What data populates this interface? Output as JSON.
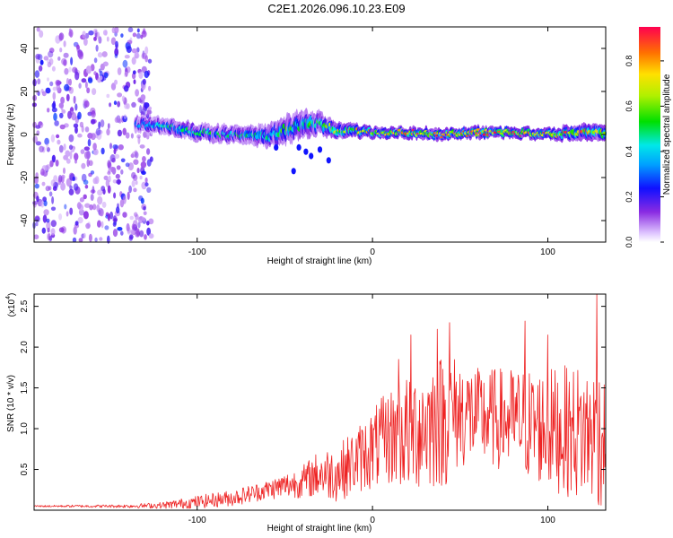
{
  "title": "C2E1.2026.096.10.23.E09",
  "chart_data": [
    {
      "type": "heatmap",
      "xlabel": "Height of straight line (km)",
      "ylabel": "Frequency (Hz)",
      "xlim": [
        -193,
        133
      ],
      "ylim": [
        -50,
        50
      ],
      "xticks": [
        -100,
        0,
        100
      ],
      "yticks": [
        -40,
        -20,
        0,
        20,
        40
      ],
      "colorbar": {
        "label": "Normalized spectral amplitude",
        "range": [
          0,
          0.95
        ],
        "ticks": [
          "0.0",
          "0.2",
          "0.4",
          "0.6",
          "0.8"
        ],
        "tick_values": [
          0,
          0.2,
          0.4,
          0.6,
          0.8
        ]
      },
      "noise_region": {
        "x_from": -193,
        "x_to": -126,
        "amplitude": [
          0.05,
          0.3
        ]
      },
      "signal_band": {
        "x": [
          -135,
          -120,
          -100,
          -80,
          -60,
          -50,
          -40,
          -30,
          -20,
          0,
          20,
          40,
          60,
          80,
          100,
          120,
          133
        ],
        "center_freq": [
          5,
          4,
          1,
          0,
          -1,
          2,
          5,
          5,
          2,
          1,
          1,
          0,
          1,
          1,
          0,
          1,
          1
        ],
        "half_width": [
          3,
          3,
          3,
          3,
          4,
          5,
          5,
          4,
          3,
          2,
          2,
          2,
          2,
          2,
          2,
          3,
          3
        ],
        "peak_amplitude": [
          0.35,
          0.45,
          0.5,
          0.5,
          0.5,
          0.55,
          0.55,
          0.6,
          0.7,
          0.8,
          0.85,
          0.85,
          0.9,
          0.9,
          0.85,
          0.8,
          0.75
        ]
      },
      "tail_blobs": [
        {
          "x": -38,
          "freq": -8
        },
        {
          "x": -35,
          "freq": -10
        },
        {
          "x": -30,
          "freq": -7
        },
        {
          "x": -42,
          "freq": -6
        },
        {
          "x": -45,
          "freq": -17
        },
        {
          "x": -25,
          "freq": -12
        },
        {
          "x": -55,
          "freq": -6
        }
      ]
    },
    {
      "type": "line",
      "color": "#ee2222",
      "xlabel": "Height of straight line (km)",
      "ylabel": "SNR (10 * v/v)",
      "y_multiplier": "(x10",
      "y_multiplier_exp": "4",
      "y_multiplier_close": ")",
      "xlim": [
        -193,
        133
      ],
      "ylim": [
        0,
        2.65
      ],
      "xticks": [
        -100,
        0,
        100
      ],
      "yticks": [
        0.5,
        1.0,
        1.5,
        2.0,
        2.5
      ],
      "ytick_labels": [
        "0.5",
        "1.0",
        "1.5",
        "2.0",
        "2.5"
      ],
      "envelope": {
        "x": [
          -193,
          -140,
          -120,
          -100,
          -80,
          -60,
          -40,
          -30,
          -20,
          -10,
          0,
          10,
          20,
          30,
          40,
          50,
          60,
          80,
          100,
          120,
          133
        ],
        "mean": [
          0.05,
          0.05,
          0.06,
          0.1,
          0.15,
          0.25,
          0.35,
          0.45,
          0.45,
          0.6,
          0.75,
          0.9,
          0.95,
          1.05,
          1.1,
          1.2,
          1.15,
          1.1,
          1.0,
          0.95,
          0.9
        ],
        "spread": [
          0.01,
          0.02,
          0.04,
          0.08,
          0.1,
          0.12,
          0.2,
          0.3,
          0.35,
          0.4,
          0.5,
          0.6,
          0.75,
          0.8,
          0.85,
          0.7,
          0.6,
          0.65,
          0.75,
          0.85,
          0.9
        ]
      },
      "peaks": [
        {
          "x": 22,
          "y": 2.15
        },
        {
          "x": 37,
          "y": 2.22
        },
        {
          "x": 44,
          "y": 2.3
        },
        {
          "x": 87,
          "y": 2.32
        },
        {
          "x": 100,
          "y": 2.15
        },
        {
          "x": 128,
          "y": 2.65
        },
        {
          "x": 15,
          "y": 1.85
        }
      ]
    }
  ]
}
